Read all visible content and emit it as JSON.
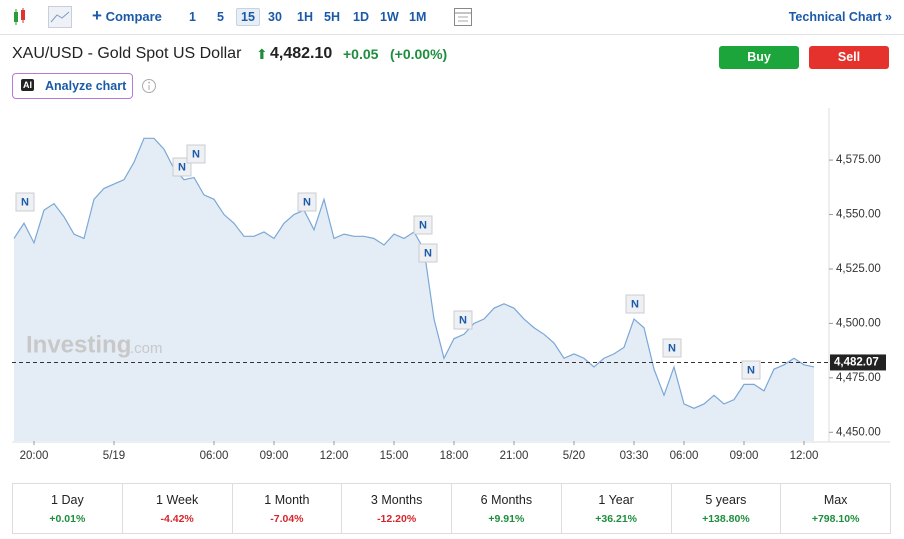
{
  "toolbar": {
    "compare": "Compare",
    "intervals": [
      "1",
      "5",
      "15",
      "30",
      "1H",
      "5H",
      "1D",
      "1W",
      "1M"
    ],
    "active_interval": "15",
    "technical_chart": "Technical Chart"
  },
  "header": {
    "title": "XAU/USD - Gold Spot US Dollar",
    "price": "4,482.10",
    "change": "+0.05",
    "change_pct": "(+0.00%)",
    "buy": "Buy",
    "sell": "Sell",
    "ai_badge": "AI",
    "analyze": "Analyze chart"
  },
  "watermark": {
    "brand": "Investing",
    "suffix": ".com"
  },
  "news_marker": "N",
  "chart_data": {
    "type": "line",
    "color": "#7ba7d7",
    "categories": [
      null,
      null,
      "20:00",
      null,
      null,
      null,
      null,
      null,
      null,
      null,
      "5/19",
      null,
      null,
      null,
      null,
      null,
      null,
      null,
      null,
      null,
      "06:00",
      null,
      null,
      null,
      null,
      null,
      "09:00",
      null,
      null,
      null,
      null,
      null,
      "12:00",
      null,
      null,
      null,
      null,
      null,
      "15:00",
      null,
      null,
      null,
      null,
      null,
      "18:00",
      null,
      null,
      null,
      null,
      null,
      "21:00",
      null,
      null,
      null,
      null,
      null,
      "5/20",
      null,
      null,
      null,
      null,
      null,
      "03:30",
      null,
      null,
      null,
      null,
      "06:00",
      null,
      null,
      null,
      null,
      null,
      "09:00",
      null,
      null,
      null,
      null,
      null,
      "12:00",
      null
    ],
    "values": [
      4539,
      4546,
      4537,
      4552,
      4555,
      4549,
      4541,
      4539,
      4557,
      4562,
      4564,
      4566,
      4574,
      4585,
      4585,
      4580,
      4571,
      4566,
      4567,
      4559,
      4557,
      4550,
      4546,
      4540,
      4540,
      4542,
      4539,
      4546,
      4550,
      4552,
      4543,
      4557,
      4539,
      4541,
      4540,
      4540,
      4539,
      4536,
      4541,
      4539,
      4542,
      4534,
      4502,
      4484,
      4493,
      4495,
      4500,
      4502,
      4507,
      4509,
      4507,
      4502,
      4498,
      4495,
      4491,
      4484,
      4486,
      4484,
      4480,
      4484,
      4486,
      4489,
      4502,
      4498,
      4479,
      4467,
      4480,
      4463,
      4461,
      4463,
      4467,
      4463,
      4465,
      4472,
      4472,
      4469,
      4479,
      4481,
      4484,
      4481,
      4480
    ],
    "ylim": [
      4446,
      4598
    ],
    "yticks": [
      {
        "value": 4450,
        "label": "4,450.00"
      },
      {
        "value": 4475,
        "label": "4,475.00"
      },
      {
        "value": 4500,
        "label": "4,500.00"
      },
      {
        "value": 4525,
        "label": "4,525.00"
      },
      {
        "value": 4550,
        "label": "4,550.00"
      },
      {
        "value": 4575,
        "label": "4,575.00"
      }
    ],
    "last_price": {
      "value": 4482.07,
      "label": "4,482.07"
    }
  },
  "performance": [
    {
      "period": "1 Day",
      "change": "+0.01%"
    },
    {
      "period": "1 Week",
      "change": "-4.42%"
    },
    {
      "period": "1 Month",
      "change": "-7.04%"
    },
    {
      "period": "3 Months",
      "change": "-12.20%"
    },
    {
      "period": "6 Months",
      "change": "+9.91%"
    },
    {
      "period": "1 Year",
      "change": "+36.21%"
    },
    {
      "period": "5 years",
      "change": "+138.80%"
    },
    {
      "period": "Max",
      "change": "+798.10%"
    }
  ]
}
